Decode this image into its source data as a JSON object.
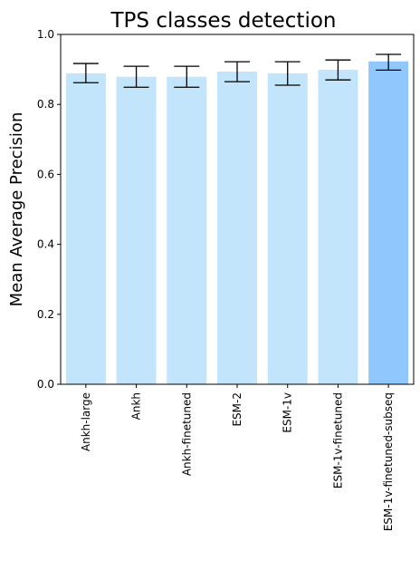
{
  "chart_data": {
    "type": "bar",
    "title": "TPS classes detection",
    "xlabel": "",
    "ylabel": "Mean Average Precision",
    "ylim": [
      0,
      1.0
    ],
    "yticks": [
      "0.0",
      "0.2",
      "0.4",
      "0.6",
      "0.8",
      "1.0"
    ],
    "grid": false,
    "categories": [
      "Ankh-large",
      "Ankh",
      "Ankh-finetuned",
      "ESM-2",
      "ESM-1v",
      "ESM-1v-finetuned",
      "ESM-1v-finetuned-subseq"
    ],
    "values": [
      0.889,
      0.879,
      0.879,
      0.894,
      0.889,
      0.899,
      0.923
    ],
    "error_low": [
      0.862,
      0.849,
      0.849,
      0.865,
      0.855,
      0.87,
      0.898
    ],
    "error_high": [
      0.917,
      0.909,
      0.909,
      0.922,
      0.922,
      0.927,
      0.943
    ],
    "colors": [
      "#c2e5fb",
      "#c2e5fb",
      "#c2e5fb",
      "#c2e5fb",
      "#c2e5fb",
      "#c2e5fb",
      "#90c7fd"
    ]
  }
}
